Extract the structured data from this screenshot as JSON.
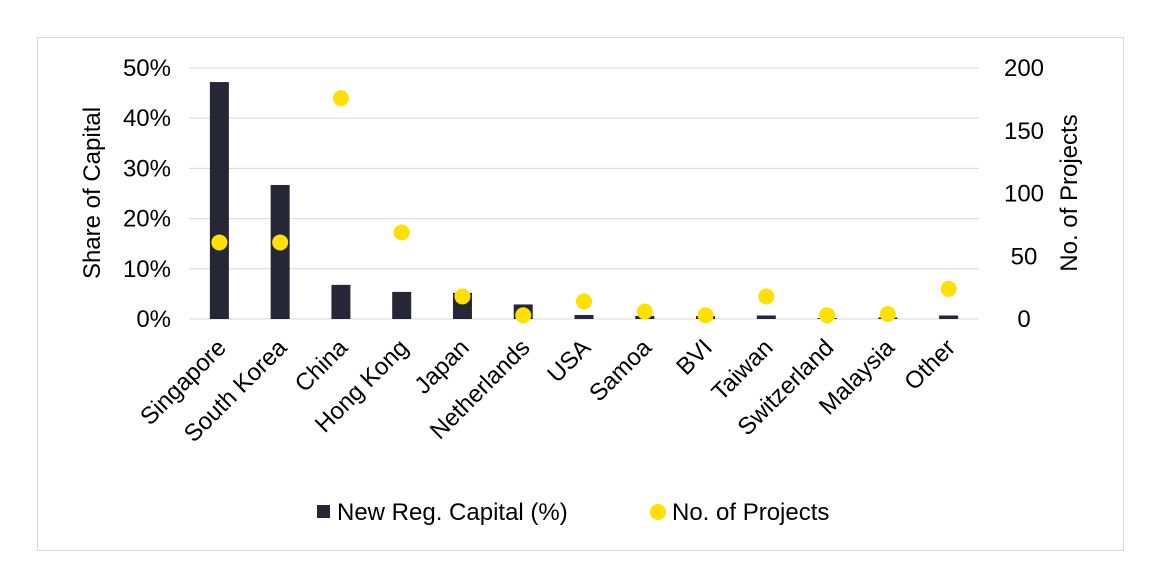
{
  "chart_data": {
    "type": "bar",
    "categories": [
      "Singapore",
      "South Korea",
      "China",
      "Hong Kong",
      "Japan",
      "Netherlands",
      "USA",
      "Samoa",
      "BVI",
      "Taiwan",
      "Switzerland",
      "Malaysia",
      "Other"
    ],
    "series": [
      {
        "name": "New Reg. Capital (%)",
        "type": "bar",
        "axis": "left",
        "color": "#262637",
        "values": [
          47.2,
          26.7,
          6.8,
          5.4,
          5.2,
          2.9,
          0.8,
          0.6,
          0.6,
          0.7,
          0.2,
          0.3,
          0.7
        ]
      },
      {
        "name": "No. of Projects",
        "type": "scatter",
        "axis": "right",
        "color": "#ffe000",
        "values": [
          61,
          61,
          176,
          69,
          18,
          3,
          14,
          6,
          3,
          18,
          3,
          4,
          24
        ]
      }
    ],
    "ylabel": "Share of Capital",
    "ylabel_right": "No. of Projects",
    "ylim": [
      0,
      50
    ],
    "ylim_right": [
      0,
      200
    ],
    "yticks": [
      "0%",
      "10%",
      "20%",
      "30%",
      "40%",
      "50%"
    ],
    "yticks_right": [
      "0",
      "50",
      "100",
      "150",
      "200"
    ],
    "grid": true,
    "legend_position": "bottom",
    "legend": [
      {
        "label": "New Reg. Capital (%)",
        "marker": "square",
        "color": "#262637"
      },
      {
        "label": "No. of Projects",
        "marker": "circle",
        "color": "#ffe000"
      }
    ]
  }
}
